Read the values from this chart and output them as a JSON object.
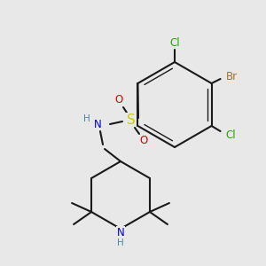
{
  "background": "#e8e8e8",
  "figsize": [
    3.0,
    3.0
  ],
  "dpi": 100,
  "lw": 1.5,
  "lw_inner": 1.0,
  "colors": {
    "bond": "#1a1a1a",
    "Cl": "#22aa00",
    "Br": "#cc6600",
    "S": "#cccc00",
    "O": "#dd0000",
    "N": "#0000cc",
    "H": "#4488aa"
  },
  "fs": 8.5,
  "fs_S": 11
}
